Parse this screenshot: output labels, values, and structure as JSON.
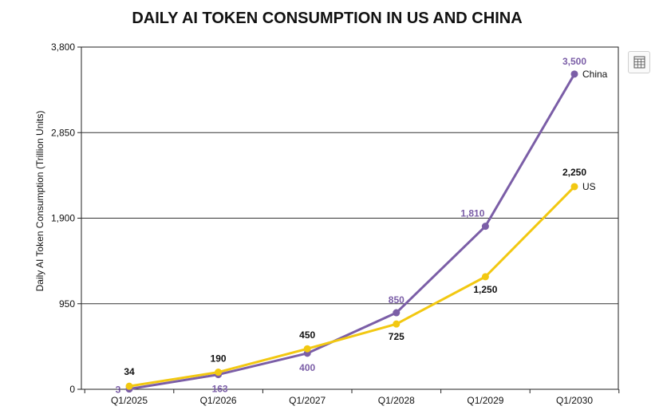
{
  "chart_data": {
    "type": "line",
    "title": "DAILY AI TOKEN CONSUMPTION IN US AND CHINA",
    "ylabel": "Daily AI Token Consumption (Trillion Units)",
    "xlabel": "",
    "categories": [
      "Q1/2025",
      "Q1/2026",
      "Q1/2027",
      "Q1/2028",
      "Q1/2029",
      "Q1/2030"
    ],
    "ylim": [
      0,
      3800
    ],
    "yticks": [
      0,
      950,
      1900,
      2850,
      3800
    ],
    "ytick_labels": [
      "0",
      "950",
      "1,900",
      "2,850",
      "3,800"
    ],
    "grid": true,
    "legend": "inline-at-line-end",
    "series": [
      {
        "name": "China",
        "color": "#7b5ea7",
        "values": [
          3,
          163,
          400,
          850,
          1810,
          3500
        ],
        "labels": [
          "3",
          "163",
          "400",
          "850",
          "1,810",
          "3,500"
        ]
      },
      {
        "name": "US",
        "color": "#f2c811",
        "values": [
          34,
          190,
          450,
          725,
          1250,
          2250
        ],
        "labels": [
          "34",
          "190",
          "450",
          "725",
          "1,250",
          "2,250"
        ]
      }
    ]
  },
  "toolbar": {
    "table_icon": "table-icon"
  }
}
